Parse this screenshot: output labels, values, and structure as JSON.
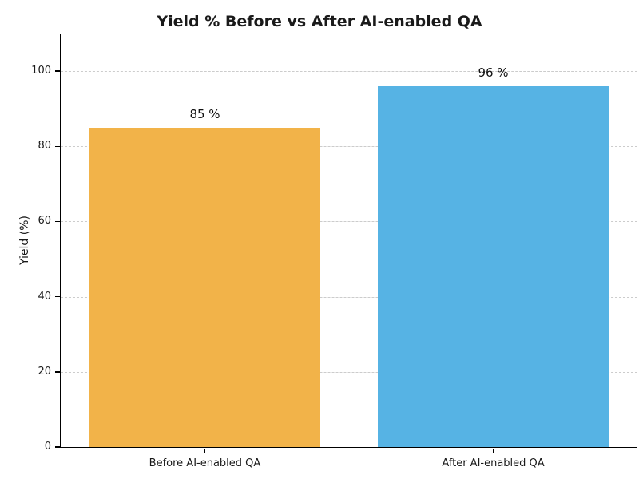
{
  "chart_data": {
    "type": "bar",
    "title": "Yield % Before vs After AI-enabled QA",
    "categories": [
      "Before AI-enabled QA",
      "After AI-enabled QA"
    ],
    "values": [
      85,
      96
    ],
    "value_labels": [
      "85 %",
      "96 %"
    ],
    "series": [
      {
        "name": "Yield %",
        "values": [
          85,
          96
        ]
      }
    ],
    "bar_colors": [
      "#F2B349",
      "#56B3E4"
    ],
    "xlabel": "",
    "ylabel": "Yield (%)",
    "ylim": [
      0,
      110
    ],
    "yticks": [
      0,
      20,
      40,
      60,
      80,
      100
    ],
    "grid": "horizontal-dashed",
    "legend": "none",
    "colors": {
      "grid": "#cccccc",
      "axis": "#000000",
      "text": "#1a1a1a",
      "background": "#ffffff"
    }
  }
}
